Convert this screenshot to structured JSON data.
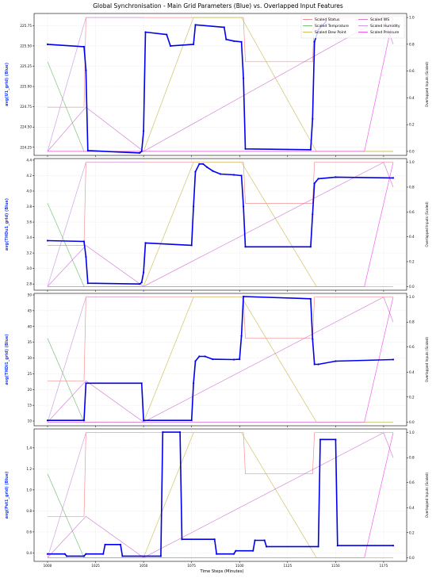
{
  "figure": {
    "title": "Global Synchronisation - Main Grid Parameters (Blue) vs. Overlapped Input Features",
    "xlabel": "Time Steps (Minutes)",
    "right_ylabel": "Overlapped Inputs (Scaled)"
  },
  "legend": [
    {
      "label": "Scaled Status",
      "color": "#f08080"
    },
    {
      "label": "Scaled Temprature",
      "color": "#66bb66"
    },
    {
      "label": "Scaled Dew Point",
      "color": "#c8b84a"
    },
    {
      "label": "Scaled WS",
      "color": "#d070d0"
    },
    {
      "label": "Scaled Humidity",
      "color": "#c890e0"
    },
    {
      "label": "Scaled Pressure",
      "color": "#ee44ee"
    }
  ],
  "chart_data": [
    {
      "type": "line",
      "ylabel": "avg(U1_grid) (Blue)",
      "ylim": [
        224.15,
        225.9
      ],
      "yticks": [
        224.25,
        224.5,
        224.75,
        225.0,
        225.25,
        225.5,
        225.75
      ],
      "ytick_labels": [
        "224.25",
        "224.50",
        "224.75",
        "225.00",
        "225.25",
        "225.50",
        "225.75"
      ],
      "series": [
        {
          "color": "#0000ee",
          "segments": [
            [
              1000,
              225.52
            ],
            [
              1019,
              225.49
            ],
            [
              1020,
              225.2
            ],
            [
              1021,
              224.21
            ],
            [
              1048,
              224.18
            ],
            [
              1049,
              224.2
            ],
            [
              1050,
              224.45
            ],
            [
              1051,
              225.67
            ],
            [
              1062,
              225.64
            ],
            [
              1064,
              225.5
            ],
            [
              1076,
              225.52
            ],
            [
              1077,
              225.76
            ],
            [
              1092,
              225.73
            ],
            [
              1093,
              225.58
            ],
            [
              1097,
              225.56
            ],
            [
              1101,
              225.55
            ],
            [
              1102,
              225.1
            ],
            [
              1103,
              224.23
            ],
            [
              1137,
              224.22
            ],
            [
              1138,
              224.6
            ],
            [
              1139,
              225.55
            ],
            [
              1141,
              225.7
            ],
            [
              1145,
              225.8
            ]
          ]
        }
      ]
    },
    {
      "type": "line",
      "ylabel": "avg(THDu1_grid) (Blue)",
      "ylim": [
        2.72,
        4.42
      ],
      "yticks": [
        2.8,
        3.0,
        3.2,
        3.4,
        3.6,
        3.8,
        4.0,
        4.2,
        4.4
      ],
      "ytick_labels": [
        "2.8",
        "3.0",
        "3.2",
        "3.4",
        "3.6",
        "3.8",
        "4.0",
        "4.2",
        "4.4"
      ],
      "series": [
        {
          "color": "#0000ee",
          "segments": [
            [
              1000,
              3.36
            ],
            [
              1019,
              3.35
            ],
            [
              1020,
              3.15
            ],
            [
              1021,
              2.81
            ],
            [
              1048,
              2.8
            ],
            [
              1049,
              2.82
            ],
            [
              1050,
              2.95
            ],
            [
              1051,
              3.33
            ],
            [
              1075,
              3.3
            ],
            [
              1076,
              3.8
            ],
            [
              1077,
              4.25
            ],
            [
              1079,
              4.35
            ],
            [
              1081,
              4.35
            ],
            [
              1083,
              4.31
            ],
            [
              1086,
              4.26
            ],
            [
              1090,
              4.22
            ],
            [
              1097,
              4.21
            ],
            [
              1101,
              4.2
            ],
            [
              1102,
              3.8
            ],
            [
              1103,
              3.28
            ],
            [
              1137,
              3.28
            ],
            [
              1138,
              3.7
            ],
            [
              1139,
              4.1
            ],
            [
              1141,
              4.16
            ],
            [
              1150,
              4.18
            ],
            [
              1180,
              4.17
            ]
          ]
        }
      ]
    },
    {
      "type": "line",
      "ylabel": "avg(THDi1_grid) (Blue)",
      "ylim": [
        8.5,
        50.5
      ],
      "yticks": [
        10,
        15,
        20,
        25,
        30,
        35,
        40,
        45,
        50
      ],
      "ytick_labels": [
        "10",
        "15",
        "20",
        "25",
        "30",
        "35",
        "40",
        "45",
        "50"
      ],
      "series": [
        {
          "color": "#0000ee",
          "segments": [
            [
              1000,
              10.2
            ],
            [
              1019,
              10.2
            ],
            [
              1020,
              22.0
            ],
            [
              1049,
              22.0
            ],
            [
              1050,
              10.2
            ],
            [
              1075,
              10.2
            ],
            [
              1076,
              22.0
            ],
            [
              1077,
              29.0
            ],
            [
              1079,
              30.5
            ],
            [
              1082,
              30.5
            ],
            [
              1086,
              29.6
            ],
            [
              1097,
              29.5
            ],
            [
              1100,
              29.6
            ],
            [
              1101,
              37.0
            ],
            [
              1102,
              49.5
            ],
            [
              1137,
              48.8
            ],
            [
              1138,
              36.0
            ],
            [
              1139,
              28.0
            ],
            [
              1141,
              28.0
            ],
            [
              1150,
              29.0
            ],
            [
              1180,
              29.5
            ]
          ]
        }
      ]
    },
    {
      "type": "line",
      "ylabel": "avg(Pst1_grid) (Blue)",
      "ylim": [
        0.32,
        1.58
      ],
      "yticks": [
        0.4,
        0.6,
        0.8,
        1.0,
        1.2,
        1.4
      ],
      "ytick_labels": [
        "0.4",
        "0.6",
        "0.8",
        "1.0",
        "1.2",
        "1.4"
      ],
      "series": [
        {
          "color": "#0000ee",
          "segments": [
            [
              1000,
              0.39
            ],
            [
              1009,
              0.39
            ],
            [
              1010,
              0.37
            ],
            [
              1019,
              0.37
            ],
            [
              1020,
              0.39
            ],
            [
              1029,
              0.39
            ],
            [
              1030,
              0.48
            ],
            [
              1038,
              0.48
            ],
            [
              1039,
              0.37
            ],
            [
              1059,
              0.37
            ],
            [
              1060,
              1.55
            ],
            [
              1069,
              1.55
            ],
            [
              1070,
              0.53
            ],
            [
              1087,
              0.53
            ],
            [
              1088,
              0.39
            ],
            [
              1097,
              0.39
            ],
            [
              1098,
              0.42
            ],
            [
              1107,
              0.42
            ],
            [
              1108,
              0.52
            ],
            [
              1113,
              0.52
            ],
            [
              1114,
              0.46
            ],
            [
              1141,
              0.46
            ],
            [
              1142,
              1.48
            ],
            [
              1150,
              1.48
            ],
            [
              1151,
              0.47
            ],
            [
              1180,
              0.47
            ]
          ]
        }
      ]
    }
  ],
  "overlay": {
    "ylim": [
      -0.03,
      1.03
    ],
    "yticks": [
      0.0,
      0.2,
      0.4,
      0.6,
      0.8,
      1.0
    ],
    "ytick_labels": [
      "0.0",
      "0.2",
      "0.4",
      "0.6",
      "0.8",
      "1.0"
    ],
    "series": [
      {
        "name": "Scaled Status",
        "color": "#f08080",
        "points": [
          [
            1000,
            0.33
          ],
          [
            1019,
            0.33
          ],
          [
            1020,
            1.0
          ],
          [
            1102,
            1.0
          ],
          [
            1103,
            0.67
          ],
          [
            1138,
            0.67
          ],
          [
            1139,
            1.0
          ],
          [
            1180,
            1.0
          ]
        ]
      },
      {
        "name": "Scaled Temprature",
        "color": "#66bb66",
        "points": [
          [
            1000,
            0.67
          ],
          [
            1019,
            0.0
          ],
          [
            1180,
            0.0
          ]
        ]
      },
      {
        "name": "Scaled Dew Point",
        "color": "#c8b84a",
        "points": [
          [
            1000,
            0.0
          ],
          [
            1050,
            0.0
          ],
          [
            1076,
            1.0
          ],
          [
            1101,
            1.0
          ],
          [
            1140,
            0.0
          ],
          [
            1180,
            0.0
          ]
        ]
      },
      {
        "name": "Scaled WS",
        "color": "#d070d0",
        "points": [
          [
            1000,
            0.0
          ],
          [
            1020,
            0.33
          ],
          [
            1050,
            0.0
          ],
          [
            1175,
            1.0
          ],
          [
            1180,
            0.8
          ]
        ]
      },
      {
        "name": "Scaled Humidity",
        "color": "#c890e0",
        "points": [
          [
            1000,
            0.0
          ],
          [
            1020,
            1.0
          ],
          [
            1050,
            1.0
          ]
        ]
      },
      {
        "name": "Scaled Pressure",
        "color": "#ee44ee",
        "points": [
          [
            1000,
            0.0
          ],
          [
            1165,
            0.0
          ],
          [
            1180,
            1.0
          ]
        ]
      }
    ]
  },
  "xaxis": {
    "xlim": [
      993,
      1187
    ],
    "ticks": [
      1000,
      1025,
      1050,
      1075,
      1100,
      1125,
      1150,
      1175
    ],
    "tick_labels": [
      "1000",
      "1025",
      "1050",
      "1075",
      "1100",
      "1125",
      "1150",
      "1175"
    ]
  }
}
